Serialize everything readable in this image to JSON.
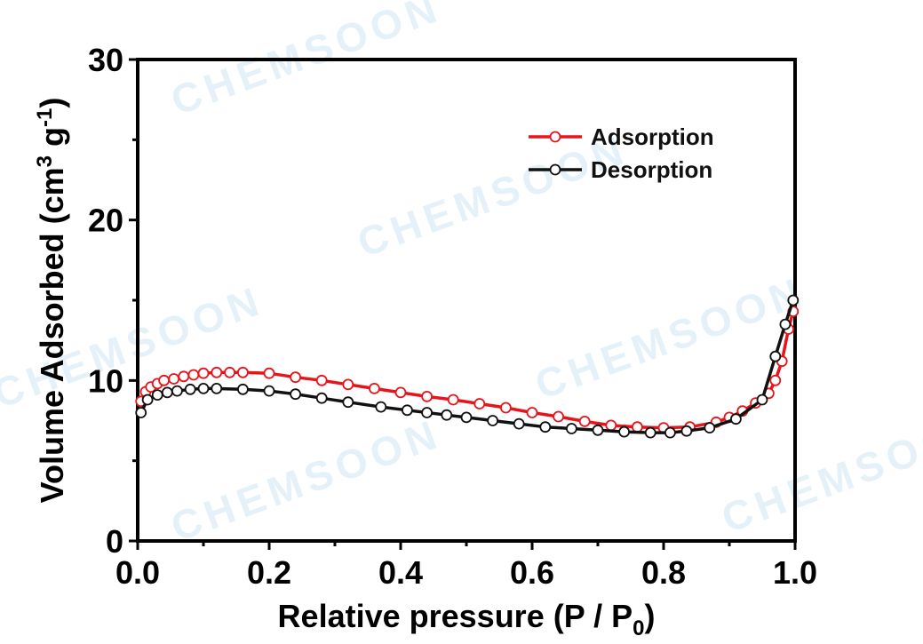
{
  "chart_data": {
    "type": "line",
    "title": "",
    "xlabel": "Relative pressure (P / P",
    "xlabel_sub": "0",
    "xlabel_end": ")",
    "ylabel": "Volume Adsorbed (cm",
    "ylabel_sup1": "3",
    "ylabel_mid": " g",
    "ylabel_sup2": "-1",
    "ylabel_end": ")",
    "xlim": [
      0.0,
      1.0
    ],
    "ylim": [
      0,
      30
    ],
    "xticks": [
      "0.0",
      "0.2",
      "0.4",
      "0.6",
      "0.8",
      "1.0"
    ],
    "yticks": [
      "0",
      "10",
      "20",
      "30"
    ],
    "legend_position": "top-right",
    "watermark": "CHEMSOON",
    "series": [
      {
        "name": "Adsorption",
        "color": "#e8141b",
        "marker": "open-circle",
        "x": [
          0.005,
          0.012,
          0.02,
          0.03,
          0.04,
          0.055,
          0.07,
          0.085,
          0.1,
          0.12,
          0.14,
          0.16,
          0.2,
          0.24,
          0.28,
          0.32,
          0.36,
          0.4,
          0.44,
          0.48,
          0.52,
          0.56,
          0.6,
          0.64,
          0.68,
          0.72,
          0.76,
          0.8,
          0.84,
          0.88,
          0.9,
          0.92,
          0.94,
          0.96,
          0.97,
          0.98,
          0.99,
          0.997
        ],
        "y": [
          8.7,
          9.3,
          9.6,
          9.8,
          10.0,
          10.1,
          10.25,
          10.35,
          10.45,
          10.5,
          10.5,
          10.5,
          10.45,
          10.2,
          10.0,
          9.75,
          9.5,
          9.25,
          9.0,
          8.8,
          8.55,
          8.3,
          8.0,
          7.75,
          7.45,
          7.2,
          7.1,
          7.05,
          7.1,
          7.4,
          7.7,
          8.1,
          8.6,
          9.2,
          10.0,
          11.2,
          13.2,
          14.3
        ]
      },
      {
        "name": "Desorption",
        "color": "#111111",
        "marker": "open-circle",
        "x": [
          0.997,
          0.985,
          0.97,
          0.95,
          0.91,
          0.87,
          0.835,
          0.81,
          0.78,
          0.74,
          0.7,
          0.66,
          0.62,
          0.58,
          0.54,
          0.5,
          0.47,
          0.44,
          0.41,
          0.37,
          0.32,
          0.28,
          0.24,
          0.2,
          0.16,
          0.12,
          0.1,
          0.08,
          0.06,
          0.045,
          0.03,
          0.015,
          0.005
        ],
        "y": [
          15.0,
          13.5,
          11.5,
          8.8,
          7.6,
          7.05,
          6.85,
          6.75,
          6.75,
          6.8,
          6.9,
          7.0,
          7.1,
          7.3,
          7.5,
          7.7,
          7.85,
          8.0,
          8.15,
          8.35,
          8.65,
          8.9,
          9.15,
          9.35,
          9.45,
          9.5,
          9.5,
          9.45,
          9.35,
          9.25,
          9.1,
          8.8,
          8.0
        ]
      }
    ]
  }
}
